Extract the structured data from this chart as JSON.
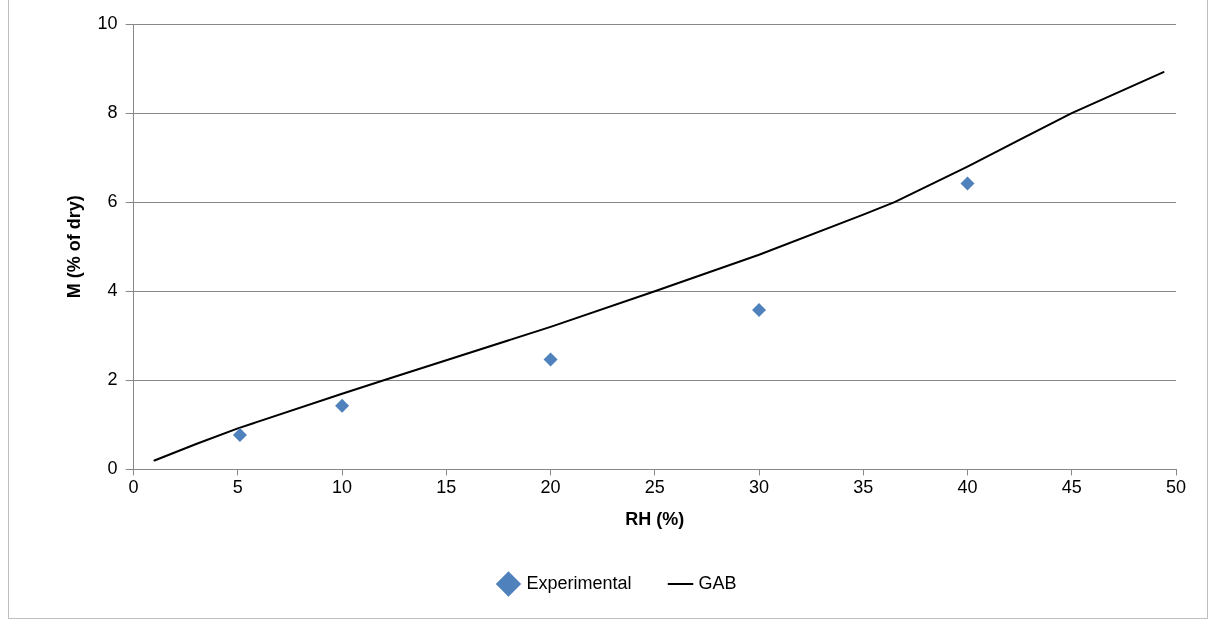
{
  "chart_data": {
    "type": "scatter",
    "xlabel": "RH (%)",
    "ylabel": "M (% of dry)",
    "xlim": [
      0,
      50
    ],
    "xticks": [
      0,
      5,
      10,
      15,
      20,
      25,
      30,
      35,
      40,
      45,
      50
    ],
    "ylim": [
      0,
      10
    ],
    "yticks": [
      0,
      2,
      4,
      6,
      8,
      10
    ],
    "grid": "y",
    "legend": "bottom",
    "series": [
      {
        "name": "Experimental",
        "type": "scatter",
        "marker": "diamond",
        "color": "#4f81bd",
        "x": [
          5.1,
          10,
          20,
          30,
          40
        ],
        "values": [
          0.77,
          1.43,
          2.47,
          3.58,
          6.42
        ]
      },
      {
        "name": "GAB",
        "type": "line",
        "marker": "none",
        "line_style": "solid",
        "color": "#000000",
        "x": [
          1,
          3,
          5,
          10,
          12,
          15,
          20,
          25,
          30,
          35,
          36.5,
          40,
          45,
          49.4
        ],
        "values": [
          0.2,
          0.57,
          0.92,
          1.7,
          2.0,
          2.45,
          3.2,
          4.0,
          4.82,
          5.72,
          6.0,
          6.8,
          8.0,
          8.92
        ]
      }
    ]
  }
}
